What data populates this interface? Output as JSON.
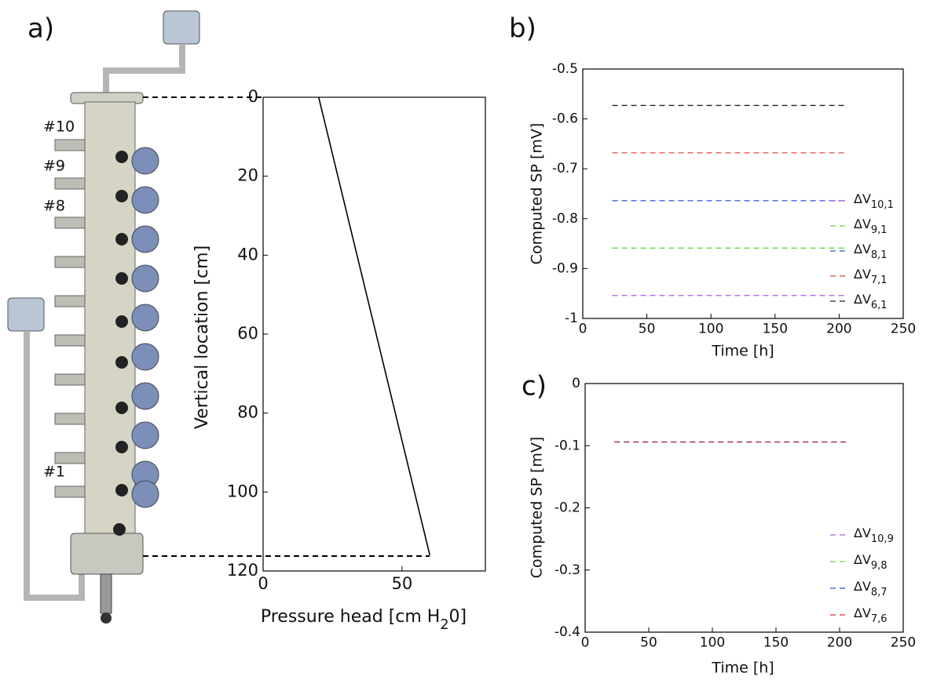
{
  "diagram": {
    "port_labels": [
      "#10",
      "#9",
      "#8",
      "#1"
    ]
  },
  "chart_data": [
    {
      "type": "line",
      "panel_label": "a)",
      "ylabel": "Vertical location [cm]",
      "xlabel": {
        "text": "Pressure head [cm H",
        "sub": "2",
        "tail": "0]"
      },
      "x": [
        20,
        60
      ],
      "values": [
        0,
        116
      ],
      "color": "#000000",
      "xlim": [
        0,
        80
      ],
      "xticks": [
        0,
        50
      ],
      "ylim": [
        120,
        0
      ],
      "yticks": [
        0,
        20,
        40,
        60,
        80,
        100,
        120
      ],
      "grid": false
    },
    {
      "type": "line",
      "panel_label": "b)",
      "xlabel": "Time [h]",
      "ylabel": "Computed SP [mV]",
      "x": [
        23,
        205
      ],
      "series": [
        {
          "name": "ΔV",
          "sub": "10,1",
          "color": "#a55cf0",
          "line_style": "dashed",
          "values": [
            -0.954,
            -0.954
          ]
        },
        {
          "name": "ΔV",
          "sub": "9,1",
          "color": "#5ed838",
          "line_style": "dashed",
          "values": [
            -0.859,
            -0.859
          ]
        },
        {
          "name": "ΔV",
          "sub": "8,1",
          "color": "#3050d8",
          "line_style": "dashed",
          "values": [
            -0.764,
            -0.764
          ]
        },
        {
          "name": "ΔV",
          "sub": "7,1",
          "color": "#e04848",
          "line_style": "dashed",
          "values": [
            -0.668,
            -0.668
          ]
        },
        {
          "name": "ΔV",
          "sub": "6,1",
          "color": "#222222",
          "line_style": "dashed",
          "values": [
            -0.573,
            -0.573
          ]
        }
      ],
      "xlim": [
        0,
        250
      ],
      "xticks": [
        0,
        50,
        100,
        150,
        200,
        250
      ],
      "ylim": [
        -1,
        -0.5
      ],
      "yticks": [
        -1,
        -0.9,
        -0.8,
        -0.7,
        -0.6,
        -0.5
      ],
      "legend": "lower right",
      "grid": false
    },
    {
      "type": "line",
      "panel_label": "c)",
      "xlabel": "Time [h]",
      "ylabel": "Computed SP [mV]",
      "x": [
        23,
        205
      ],
      "series": [
        {
          "name": "ΔV",
          "sub": "10,9",
          "color": "#a55cf0",
          "line_style": "dashed",
          "values": [
            -0.094,
            -0.094
          ]
        },
        {
          "name": "ΔV",
          "sub": "9,8",
          "color": "#5ed838",
          "line_style": "dashed",
          "values": [
            -0.094,
            -0.094
          ]
        },
        {
          "name": "ΔV",
          "sub": "8,7",
          "color": "#3050d8",
          "line_style": "dashed",
          "values": [
            -0.094,
            -0.094
          ]
        },
        {
          "name": "ΔV",
          "sub": "7,6",
          "color": "#d03040",
          "line_style": "dashed",
          "values": [
            -0.094,
            -0.094
          ]
        }
      ],
      "xlim": [
        0,
        250
      ],
      "xticks": [
        0,
        50,
        100,
        150,
        200,
        250
      ],
      "ylim": [
        -0.4,
        0
      ],
      "yticks": [
        -0.4,
        -0.3,
        -0.2,
        -0.1,
        0
      ],
      "legend": "lower right",
      "grid": false
    }
  ]
}
